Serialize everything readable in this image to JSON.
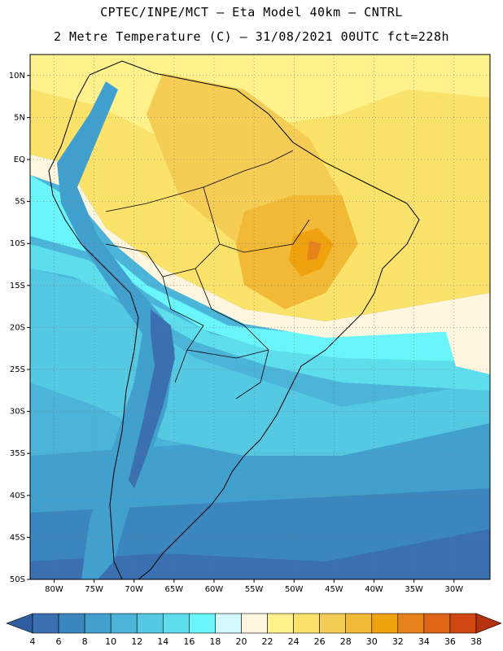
{
  "header": {
    "line1": "CPTEC/INPE/MCT –  Eta Model 40km – CNTRL",
    "line2": "2 Metre Temperature (C) – 31/08/2021 00UTC fct=228h"
  },
  "map": {
    "lat_labels": [
      "10N",
      "5N",
      "EQ",
      "5S",
      "10S",
      "15S",
      "20S",
      "25S",
      "30S",
      "35S",
      "40S",
      "45S",
      "50S"
    ],
    "lon_labels": [
      "80W",
      "75W",
      "70W",
      "65W",
      "60W",
      "55W",
      "50W",
      "45W",
      "40W",
      "35W",
      "30W"
    ]
  },
  "colorbar": {
    "labels": [
      "4",
      "6",
      "8",
      "10",
      "12",
      "14",
      "16",
      "18",
      "20",
      "22",
      "24",
      "26",
      "28",
      "30",
      "32",
      "34",
      "36",
      "38"
    ],
    "colors": [
      "#3a6fb0",
      "#3c86bf",
      "#41a0cd",
      "#4bb4d8",
      "#55c8e2",
      "#5edded",
      "#6af5fb",
      "#d2f8fc",
      "#fff6e0",
      "#fff28c",
      "#fbe26a",
      "#f5cd55",
      "#f1b935",
      "#efa20e",
      "#e8831c",
      "#e06516",
      "#cf4611"
    ],
    "low_color": "#2f5ea0",
    "high_color": "#b5300d"
  }
}
